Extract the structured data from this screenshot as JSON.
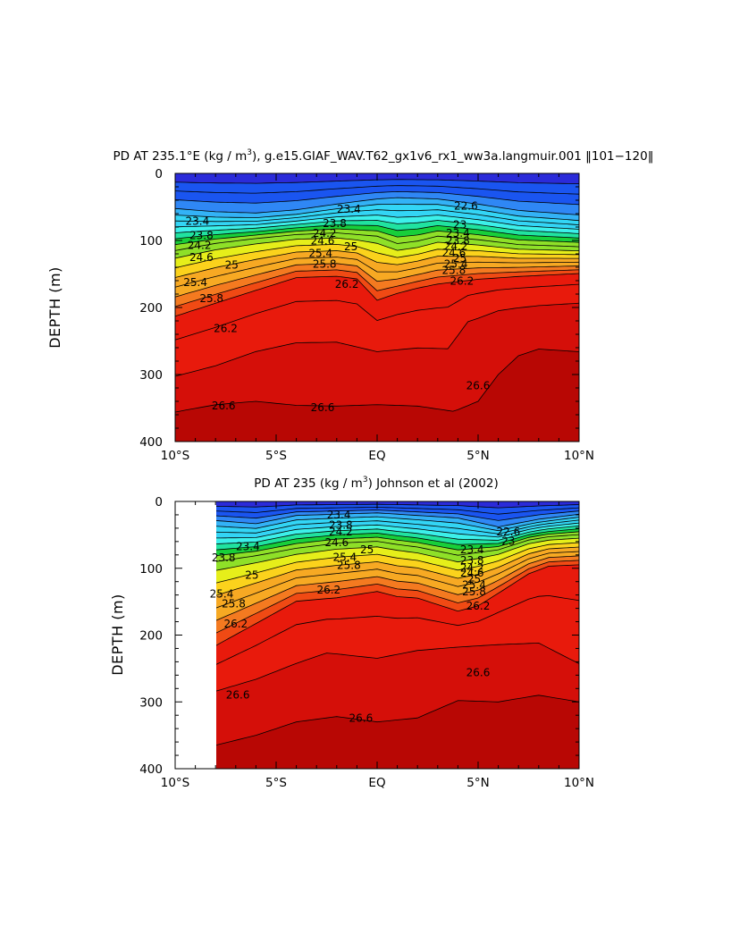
{
  "figure": {
    "colors": {
      "levels": [
        "#8a2be2",
        "#2b2bd9",
        "#1a55f0",
        "#2f87f5",
        "#33b2f6",
        "#33d5f5",
        "#3cf0ea",
        "#20e3a0",
        "#18cf3a",
        "#8fe028",
        "#e6ee1a",
        "#fbd21c",
        "#f7a923",
        "#f47a20",
        "#f04a14",
        "#e81a0c",
        "#d50f09",
        "#b80704"
      ],
      "contour_line": "#000000",
      "magenta": "#ff22ff"
    }
  },
  "chart_data": [
    {
      "type": "contour",
      "title": "PD AT 235.1°E (kg / m³), g.e15.GIAF_WAV.T62_gx1v6_rx1_ww3a.langmuir.001 ‖101−120‖",
      "title_parts": {
        "pre": "PD AT 235.1°E (kg / m",
        "sup": "3",
        "post": "), g.e15.GIAF_WAV.T62_gx1v6_rx1_ww3a.langmuir.001 ‖101−120‖"
      },
      "ylabel": "DEPTH (m)",
      "xlim": [
        -10,
        10
      ],
      "ylim": [
        400,
        0
      ],
      "x_ticks": [
        -10,
        -5,
        0,
        5,
        10
      ],
      "x_tick_labels": [
        "10°S",
        "5°S",
        "EQ",
        "5°N",
        "10°N"
      ],
      "y_ticks": [
        0,
        100,
        200,
        300,
        400
      ],
      "y_tick_labels": [
        "0",
        "100",
        "200",
        "300",
        "400"
      ],
      "data_start_lat": -10,
      "contour_levels": [
        22.4,
        22.6,
        22.8,
        23.0,
        23.2,
        23.4,
        23.6,
        23.8,
        24.0,
        24.2,
        24.4,
        24.6,
        24.8,
        25.0,
        25.2,
        25.4,
        25.6,
        25.8,
        26.0,
        26.2,
        26.4,
        26.6
      ],
      "contour_labels": [
        {
          "text": "23.4",
          "lat": -8.9,
          "depth": 72
        },
        {
          "text": "23.8",
          "lat": -8.7,
          "depth": 93
        },
        {
          "text": "24.2",
          "lat": -8.8,
          "depth": 108
        },
        {
          "text": "24.6",
          "lat": -8.7,
          "depth": 126
        },
        {
          "text": "25",
          "lat": -7.2,
          "depth": 137
        },
        {
          "text": "25.4",
          "lat": -9.0,
          "depth": 163
        },
        {
          "text": "25.8",
          "lat": -8.2,
          "depth": 187
        },
        {
          "text": "26.2",
          "lat": -7.5,
          "depth": 232
        },
        {
          "text": "26.6",
          "lat": -7.6,
          "depth": 347
        },
        {
          "text": "23.4",
          "lat": -1.4,
          "depth": 54
        },
        {
          "text": "23.8",
          "lat": -2.1,
          "depth": 75
        },
        {
          "text": "24.2",
          "lat": -2.6,
          "depth": 90
        },
        {
          "text": "24.6",
          "lat": -2.7,
          "depth": 101
        },
        {
          "text": "25",
          "lat": -1.3,
          "depth": 110
        },
        {
          "text": "25.4",
          "lat": -2.8,
          "depth": 120
        },
        {
          "text": "25.8",
          "lat": -2.6,
          "depth": 136
        },
        {
          "text": "26.2",
          "lat": -1.5,
          "depth": 166
        },
        {
          "text": "26.6",
          "lat": -2.7,
          "depth": 350
        },
        {
          "text": "22.6",
          "lat": 4.4,
          "depth": 49
        },
        {
          "text": "23",
          "lat": 4.1,
          "depth": 77
        },
        {
          "text": "23.4",
          "lat": 4.0,
          "depth": 90
        },
        {
          "text": "23.8",
          "lat": 4.0,
          "depth": 101
        },
        {
          "text": "24.2",
          "lat": 3.9,
          "depth": 109
        },
        {
          "text": "24.6",
          "lat": 3.8,
          "depth": 119
        },
        {
          "text": "25",
          "lat": 4.1,
          "depth": 127
        },
        {
          "text": "25.4",
          "lat": 3.9,
          "depth": 136
        },
        {
          "text": "25.8",
          "lat": 3.8,
          "depth": 145
        },
        {
          "text": "26.2",
          "lat": 4.2,
          "depth": 161
        },
        {
          "text": "26.6",
          "lat": 5.0,
          "depth": 317
        }
      ]
    },
    {
      "type": "contour",
      "title": "PD AT 235 (kg / m³) Johnson et al (2002)",
      "title_parts": {
        "pre": "PD AT 235 (kg / m",
        "sup": "3",
        "post": ") Johnson et al (2002)"
      },
      "ylabel": "DEPTH (m)",
      "xlim": [
        -10,
        10
      ],
      "ylim": [
        400,
        0
      ],
      "x_ticks": [
        -10,
        -5,
        0,
        5,
        10
      ],
      "x_tick_labels": [
        "10°S",
        "5°S",
        "EQ",
        "5°N",
        "10°N"
      ],
      "y_ticks": [
        0,
        100,
        200,
        300,
        400
      ],
      "y_tick_labels": [
        "0",
        "100",
        "200",
        "300",
        "400"
      ],
      "data_start_lat": -8,
      "contour_levels": [
        22.4,
        22.6,
        22.8,
        23.0,
        23.2,
        23.4,
        23.6,
        23.8,
        24.0,
        24.2,
        24.4,
        24.6,
        24.8,
        25.0,
        25.2,
        25.4,
        25.6,
        25.8,
        26.0,
        26.2,
        26.4,
        26.6
      ],
      "contour_labels": [
        {
          "text": "23.4",
          "lat": -6.4,
          "depth": 68
        },
        {
          "text": "23.8",
          "lat": -7.6,
          "depth": 85
        },
        {
          "text": "25",
          "lat": -6.2,
          "depth": 111
        },
        {
          "text": "25.4",
          "lat": -7.7,
          "depth": 139
        },
        {
          "text": "25.8",
          "lat": -7.1,
          "depth": 154
        },
        {
          "text": "26.2",
          "lat": -7.0,
          "depth": 184
        },
        {
          "text": "26.6",
          "lat": -6.9,
          "depth": 290
        },
        {
          "text": "23.4",
          "lat": -1.9,
          "depth": 21
        },
        {
          "text": "23.8",
          "lat": -1.8,
          "depth": 36
        },
        {
          "text": "24.2",
          "lat": -1.8,
          "depth": 46
        },
        {
          "text": "24.6",
          "lat": -2.0,
          "depth": 62
        },
        {
          "text": "25",
          "lat": -0.5,
          "depth": 73
        },
        {
          "text": "25.4",
          "lat": -1.6,
          "depth": 84
        },
        {
          "text": "25.8",
          "lat": -1.4,
          "depth": 96
        },
        {
          "text": "26.2",
          "lat": -2.4,
          "depth": 133
        },
        {
          "text": "26.6",
          "lat": -0.8,
          "depth": 325
        },
        {
          "text": "22.6",
          "lat": 6.5,
          "depth": 46
        },
        {
          "text": "23",
          "lat": 6.5,
          "depth": 60
        },
        {
          "text": "23.4",
          "lat": 4.7,
          "depth": 73
        },
        {
          "text": "23.8",
          "lat": 4.7,
          "depth": 89
        },
        {
          "text": "24.2",
          "lat": 4.7,
          "depth": 100
        },
        {
          "text": "24.6",
          "lat": 4.7,
          "depth": 108
        },
        {
          "text": "25",
          "lat": 4.8,
          "depth": 117
        },
        {
          "text": "25.4",
          "lat": 4.8,
          "depth": 126
        },
        {
          "text": "25.8",
          "lat": 4.8,
          "depth": 136
        },
        {
          "text": "26.2",
          "lat": 5.0,
          "depth": 157
        },
        {
          "text": "26.6",
          "lat": 5.0,
          "depth": 257
        }
      ]
    }
  ]
}
